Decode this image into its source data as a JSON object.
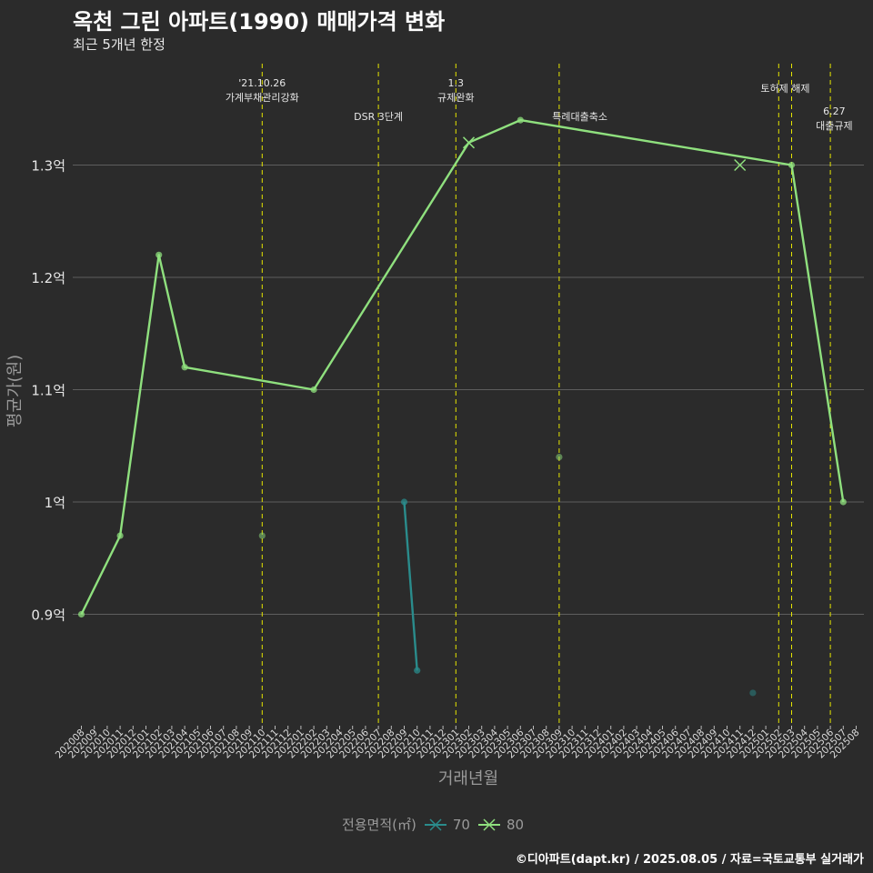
{
  "title": "옥천 그린 아파트(1990) 매매가격 변화",
  "subtitle": "최근 5개년 한정",
  "caption": "©디아파트(dapt.kr) / 2025.08.05 / 자료=국토교통부 실거래가",
  "legend": {
    "title": "전용면적(㎡)",
    "items": [
      {
        "label": "70",
        "color": "#2a8c8c"
      },
      {
        "label": "80",
        "color": "#8fe07e"
      }
    ]
  },
  "chart_data": {
    "type": "line",
    "xlabel": "거래년월",
    "ylabel": "평균가(원)",
    "ylim": [
      0.8,
      1.4
    ],
    "yticks": [
      {
        "value": 0.9,
        "label": "0.9억"
      },
      {
        "value": 1.0,
        "label": "1억"
      },
      {
        "value": 1.1,
        "label": "1.1억"
      },
      {
        "value": 1.2,
        "label": "1.2억"
      },
      {
        "value": 1.3,
        "label": "1.3억"
      }
    ],
    "categories": [
      "202008",
      "202009",
      "202010",
      "202011",
      "202012",
      "202101",
      "202102",
      "202103",
      "202104",
      "202105",
      "202106",
      "202107",
      "202108",
      "202109",
      "202110",
      "202111",
      "202112",
      "202201",
      "202202",
      "202203",
      "202204",
      "202205",
      "202206",
      "202207",
      "202208",
      "202209",
      "202210",
      "202211",
      "202212",
      "202301",
      "202302",
      "202303",
      "202304",
      "202305",
      "202306",
      "202307",
      "202308",
      "202309",
      "202310",
      "202311",
      "202312",
      "202401",
      "202402",
      "202403",
      "202404",
      "202405",
      "202406",
      "202407",
      "202408",
      "202409",
      "202410",
      "202411",
      "202412",
      "202501",
      "202502",
      "202503",
      "202504",
      "202505",
      "202506",
      "202507",
      "202508"
    ],
    "series": [
      {
        "name": "70",
        "color": "#2a8c8c",
        "line": [
          {
            "x": "202209",
            "y": 1.0
          },
          {
            "x": "202210",
            "y": 0.85
          }
        ],
        "points": [
          {
            "x": "202209",
            "y": 1.0
          },
          {
            "x": "202210",
            "y": 0.85
          }
        ],
        "dots": [
          {
            "x": "202412",
            "y": 0.83
          }
        ]
      },
      {
        "name": "80",
        "color": "#8fe07e",
        "line": [
          {
            "x": "202008",
            "y": 0.9
          },
          {
            "x": "202011",
            "y": 0.97
          },
          {
            "x": "202102",
            "y": 1.22
          },
          {
            "x": "202104",
            "y": 1.12
          },
          {
            "x": "202202",
            "y": 1.1
          },
          {
            "x": "202302",
            "y": 1.32
          },
          {
            "x": "202306",
            "y": 1.34
          },
          {
            "x": "202503",
            "y": 1.3
          },
          {
            "x": "202507",
            "y": 1.0
          }
        ],
        "points": [
          {
            "x": "202008",
            "y": 0.9
          },
          {
            "x": "202011",
            "y": 0.97
          },
          {
            "x": "202102",
            "y": 1.22
          },
          {
            "x": "202104",
            "y": 1.12
          },
          {
            "x": "202202",
            "y": 1.1
          },
          {
            "x": "202306",
            "y": 1.34
          },
          {
            "x": "202503",
            "y": 1.3
          },
          {
            "x": "202507",
            "y": 1.0
          }
        ],
        "crosses": [
          {
            "x": "202302",
            "y": 1.32
          },
          {
            "x": "202411",
            "y": 1.3
          }
        ],
        "dots": [
          {
            "x": "202110",
            "y": 0.97
          },
          {
            "x": "202309",
            "y": 1.04
          }
        ]
      }
    ],
    "vlines": [
      {
        "x": "202110",
        "offset": 0,
        "lines": [
          "'21.10.26",
          "가계부채관리강화"
        ],
        "label_y": 1.37,
        "label_offset": 0
      },
      {
        "x": "202207",
        "offset": 0,
        "lines": [
          "DSR 3단계"
        ],
        "label_y": 1.34,
        "label_offset": 0
      },
      {
        "x": "202301",
        "offset": 0,
        "lines": [
          "1.3",
          "규제완화"
        ],
        "label_y": 1.37,
        "label_offset": 0
      },
      {
        "x": "202309",
        "offset": 0,
        "lines": [
          "특례대출축소"
        ],
        "label_y": 1.34,
        "label_offset": 1.6
      },
      {
        "x": "202502",
        "offset": 0,
        "lines": [],
        "label_y": 1.36,
        "label_offset": 0
      },
      {
        "x": "202503",
        "offset": 0,
        "lines": [
          "토허제 해제"
        ],
        "label_y": 1.365,
        "label_offset": -0.5
      },
      {
        "x": "202506",
        "offset": 0,
        "lines": [
          "6.27",
          "대출규제"
        ],
        "label_y": 1.345,
        "label_offset": 0.3
      }
    ]
  }
}
